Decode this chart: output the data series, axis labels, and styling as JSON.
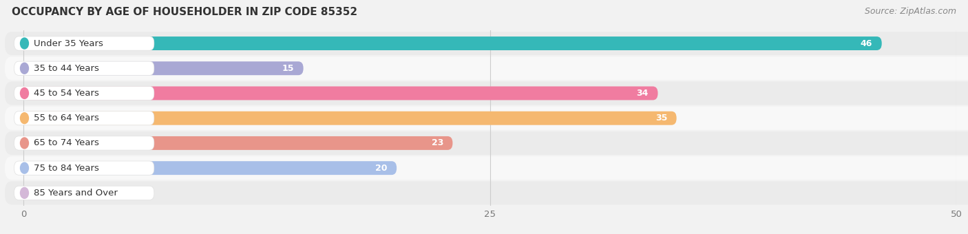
{
  "title": "OCCUPANCY BY AGE OF HOUSEHOLDER IN ZIP CODE 85352",
  "source": "Source: ZipAtlas.com",
  "categories": [
    "Under 35 Years",
    "35 to 44 Years",
    "45 to 54 Years",
    "55 to 64 Years",
    "65 to 74 Years",
    "75 to 84 Years",
    "85 Years and Over"
  ],
  "values": [
    46,
    15,
    34,
    35,
    23,
    20,
    0
  ],
  "bar_colors": [
    "#35b8b8",
    "#a9a8d4",
    "#f07ca0",
    "#f5b870",
    "#e8958a",
    "#a8bfe8",
    "#d4b8d8"
  ],
  "xlim": [
    0,
    50
  ],
  "xticks": [
    0,
    25,
    50
  ],
  "label_fontsize": 9.5,
  "value_fontsize": 9,
  "title_fontsize": 11,
  "source_fontsize": 9,
  "bar_height": 0.55,
  "bg_color": "#f2f2f2",
  "bar_label_inside_color": "#ffffff",
  "bar_label_outside_color": "#555555"
}
